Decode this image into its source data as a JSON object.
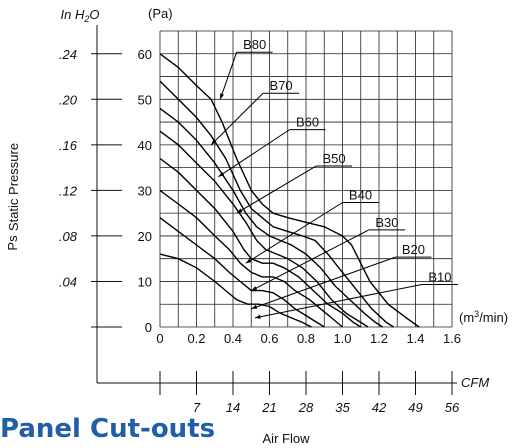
{
  "section_heading": "Panel Cut-outs",
  "chart_data": {
    "type": "line",
    "title": "",
    "ylabel_left_top": "In H",
    "ylabel_left_sub": "2",
    "ylabel_left_end": "O",
    "ylabel_pa": "(Pa)",
    "ylabel_main": "Static Pressure",
    "ylabel_ps": "Ps",
    "xlabel_unit_pre": "(m",
    "xlabel_unit_sup": "3",
    "xlabel_unit_post": "/min)",
    "xlabel_cfm": "CFM",
    "xlabel_main": "Air Flow",
    "ylim": [
      0,
      65
    ],
    "xlim": [
      0,
      1.6
    ],
    "y_ticks_pa": [
      "0",
      "10",
      "20",
      "30",
      "40",
      "50",
      "60"
    ],
    "y_ticks_inh2o": [
      {
        "label": ".04",
        "pa": 10
      },
      {
        "label": ".08",
        "pa": 20
      },
      {
        "label": ".12",
        "pa": 30
      },
      {
        "label": ".16",
        "pa": 40
      },
      {
        "label": ".20",
        "pa": 50
      },
      {
        "label": ".24",
        "pa": 60
      }
    ],
    "x_ticks_m3": [
      "0",
      "0.2",
      "0.4",
      "0.6",
      "0.8",
      "1.0",
      "1.2",
      "1.4",
      "1.6"
    ],
    "x_ticks_cfm": [
      {
        "label": "7",
        "x": 0.2
      },
      {
        "label": "14",
        "x": 0.4
      },
      {
        "label": "21",
        "x": 0.6
      },
      {
        "label": "28",
        "x": 0.8
      },
      {
        "label": "35",
        "x": 1.0
      },
      {
        "label": "42",
        "x": 1.2
      },
      {
        "label": "49",
        "x": 1.4
      },
      {
        "label": "56",
        "x": 1.6
      }
    ],
    "grid": true,
    "legend_position": "callout labels",
    "series": [
      {
        "name": "B80",
        "label_at": [
          0.33,
          50
        ],
        "points": [
          [
            0,
            60
          ],
          [
            0.1,
            57
          ],
          [
            0.2,
            53
          ],
          [
            0.28,
            50
          ],
          [
            0.34,
            45
          ],
          [
            0.42,
            37
          ],
          [
            0.5,
            30
          ],
          [
            0.56,
            27
          ],
          [
            0.62,
            25
          ],
          [
            0.7,
            24
          ],
          [
            0.8,
            23
          ],
          [
            0.9,
            22
          ],
          [
            1.0,
            20
          ],
          [
            1.05,
            18
          ],
          [
            1.15,
            10
          ],
          [
            1.25,
            5
          ],
          [
            1.35,
            2
          ],
          [
            1.42,
            0
          ]
        ]
      },
      {
        "name": "B70",
        "label_at": [
          0.28,
          40
        ],
        "points": [
          [
            0,
            54
          ],
          [
            0.1,
            50
          ],
          [
            0.2,
            46
          ],
          [
            0.28,
            42
          ],
          [
            0.36,
            37
          ],
          [
            0.44,
            30
          ],
          [
            0.5,
            26
          ],
          [
            0.56,
            24
          ],
          [
            0.62,
            22
          ],
          [
            0.7,
            21
          ],
          [
            0.78,
            20
          ],
          [
            0.85,
            19
          ],
          [
            0.92,
            16
          ],
          [
            1.0,
            12
          ],
          [
            1.08,
            8
          ],
          [
            1.16,
            4
          ],
          [
            1.24,
            1
          ],
          [
            1.28,
            0
          ]
        ]
      },
      {
        "name": "B60",
        "label_at": [
          0.32,
          33
        ],
        "points": [
          [
            0,
            48
          ],
          [
            0.1,
            45
          ],
          [
            0.2,
            41
          ],
          [
            0.3,
            36
          ],
          [
            0.4,
            30
          ],
          [
            0.47,
            25
          ],
          [
            0.53,
            22
          ],
          [
            0.6,
            20
          ],
          [
            0.66,
            19
          ],
          [
            0.72,
            18
          ],
          [
            0.8,
            16
          ],
          [
            0.88,
            13
          ],
          [
            0.96,
            9
          ],
          [
            1.04,
            6
          ],
          [
            1.12,
            3
          ],
          [
            1.18,
            1
          ],
          [
            1.22,
            0
          ]
        ]
      },
      {
        "name": "B50",
        "label_at": [
          0.42,
          25
        ],
        "points": [
          [
            0,
            43
          ],
          [
            0.1,
            40
          ],
          [
            0.2,
            36
          ],
          [
            0.3,
            32
          ],
          [
            0.4,
            27
          ],
          [
            0.47,
            23
          ],
          [
            0.53,
            19
          ],
          [
            0.58,
            17
          ],
          [
            0.64,
            16
          ],
          [
            0.7,
            15
          ],
          [
            0.78,
            13
          ],
          [
            0.86,
            10
          ],
          [
            0.94,
            6
          ],
          [
            1.02,
            3
          ],
          [
            1.1,
            1
          ],
          [
            1.14,
            0
          ]
        ]
      },
      {
        "name": "B40",
        "label_at": [
          0.47,
          14
        ],
        "points": [
          [
            0,
            37
          ],
          [
            0.1,
            34
          ],
          [
            0.2,
            30
          ],
          [
            0.3,
            26
          ],
          [
            0.4,
            21
          ],
          [
            0.46,
            17
          ],
          [
            0.5,
            15
          ],
          [
            0.56,
            14
          ],
          [
            0.62,
            14
          ],
          [
            0.68,
            13
          ],
          [
            0.76,
            11
          ],
          [
            0.84,
            8
          ],
          [
            0.92,
            5
          ],
          [
            1.0,
            3
          ],
          [
            1.06,
            1
          ],
          [
            1.1,
            0
          ]
        ]
      },
      {
        "name": "B30",
        "label_at": [
          0.5,
          8
        ],
        "points": [
          [
            0,
            30
          ],
          [
            0.1,
            27
          ],
          [
            0.2,
            24
          ],
          [
            0.3,
            20
          ],
          [
            0.38,
            17
          ],
          [
            0.44,
            14
          ],
          [
            0.5,
            12
          ],
          [
            0.56,
            11
          ],
          [
            0.62,
            11
          ],
          [
            0.68,
            10
          ],
          [
            0.74,
            8
          ],
          [
            0.82,
            6
          ],
          [
            0.88,
            4
          ],
          [
            0.94,
            2
          ],
          [
            1.0,
            0
          ]
        ]
      },
      {
        "name": "B20",
        "label_at": [
          0.5,
          4
        ],
        "points": [
          [
            0,
            24
          ],
          [
            0.1,
            21
          ],
          [
            0.2,
            18
          ],
          [
            0.3,
            15
          ],
          [
            0.38,
            12
          ],
          [
            0.44,
            10
          ],
          [
            0.5,
            8
          ],
          [
            0.56,
            8
          ],
          [
            0.62,
            7.5
          ],
          [
            0.68,
            6
          ],
          [
            0.74,
            4
          ],
          [
            0.8,
            2.5
          ],
          [
            0.86,
            1
          ],
          [
            0.9,
            0
          ]
        ]
      },
      {
        "name": "B10",
        "label_at": [
          0.52,
          2
        ],
        "points": [
          [
            0,
            16
          ],
          [
            0.1,
            15
          ],
          [
            0.2,
            13
          ],
          [
            0.3,
            10
          ],
          [
            0.36,
            8
          ],
          [
            0.42,
            6
          ],
          [
            0.48,
            5
          ],
          [
            0.54,
            5
          ],
          [
            0.6,
            4.5
          ],
          [
            0.66,
            3
          ],
          [
            0.72,
            2
          ],
          [
            0.78,
            1
          ],
          [
            0.83,
            0
          ]
        ]
      }
    ]
  }
}
